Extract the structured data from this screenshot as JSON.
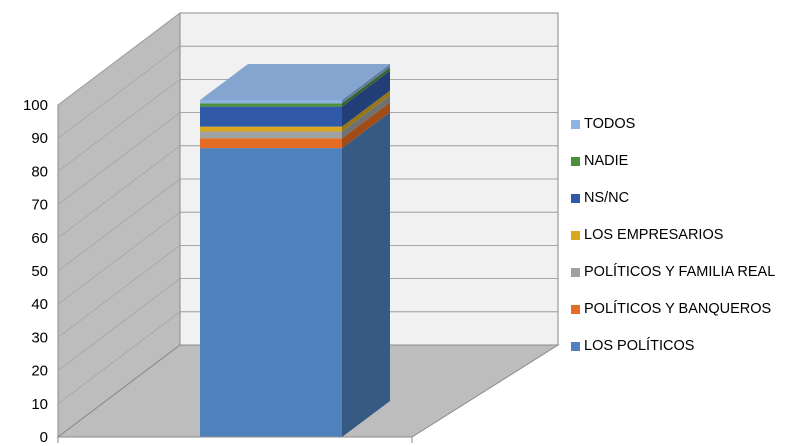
{
  "chart_data": {
    "type": "bar",
    "categories": [
      ""
    ],
    "series": [
      {
        "name": "LOS POLÍTICOS",
        "values": [
          87
        ],
        "color": "#4f81bd"
      },
      {
        "name": "POLÍTICOS Y BANQUEROS",
        "values": [
          3
        ],
        "color": "#e46c24"
      },
      {
        "name": "POLÍTICOS Y FAMILIA REAL",
        "values": [
          2
        ],
        "color": "#9fa0a0"
      },
      {
        "name": "LOS EMPRESARIOS",
        "values": [
          1.5
        ],
        "color": "#d9a81f"
      },
      {
        "name": "NS/NC",
        "values": [
          6
        ],
        "color": "#3059a8"
      },
      {
        "name": "NADIE",
        "values": [
          1
        ],
        "color": "#4c8f3c"
      },
      {
        "name": "TODOS",
        "values": [
          1
        ],
        "color": "#8fb3e2"
      }
    ],
    "y_ticks": [
      "0",
      "10",
      "20",
      "30",
      "40",
      "50",
      "60",
      "70",
      "80",
      "90",
      "100"
    ],
    "ylim": [
      0,
      100
    ],
    "stacked": true,
    "style": "3d-stacked-column",
    "legend_position": "right",
    "grid": true
  }
}
